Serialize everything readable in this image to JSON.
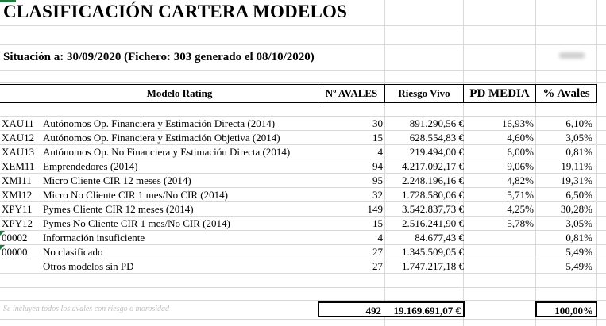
{
  "title": "CLASIFICACIÓN CARTERA MODELOS",
  "situacion": "Situación a: 30/09/2020 (Fichero: 303 generado el 08/10/2020)",
  "headers": {
    "modelo": "Modelo Rating",
    "avales": "Nº AVALES",
    "riesgo": "Riesgo Vivo",
    "pd": "PD MEDIA",
    "pct": "% Avales"
  },
  "rows": [
    {
      "code": "XAU11",
      "desc": "Autónomos Op. Financiera y Estimación Directa (2014)",
      "num": "30",
      "riesgo": "891.290,56 €",
      "pd": "16,93%",
      "pct": "6,10%"
    },
    {
      "code": "XAU12",
      "desc": "Autónomos Op. Financiera y Estimación Objetiva (2014)",
      "num": "15",
      "riesgo": "628.554,83 €",
      "pd": "4,60%",
      "pct": "3,05%"
    },
    {
      "code": "XAU13",
      "desc": "Autónomos Op. No Financiera y Estimación Directa (2014)",
      "num": "4",
      "riesgo": "219.494,00 €",
      "pd": "6,00%",
      "pct": "0,81%"
    },
    {
      "code": "XEM11",
      "desc": "Emprendedores (2014)",
      "num": "94",
      "riesgo": "4.217.092,17 €",
      "pd": "9,06%",
      "pct": "19,11%"
    },
    {
      "code": "XMI11",
      "desc": "Micro Cliente CIR 12 meses (2014)",
      "num": "95",
      "riesgo": "2.248.196,16 €",
      "pd": "4,82%",
      "pct": "19,31%"
    },
    {
      "code": "XMI12",
      "desc": "Micro No Cliente CIR 1 mes/No CIR (2014)",
      "num": "32",
      "riesgo": "1.728.580,06 €",
      "pd": "5,71%",
      "pct": "6,50%"
    },
    {
      "code": "XPY11",
      "desc": "Pymes Cliente CIR 12 meses (2014)",
      "num": "149",
      "riesgo": "3.542.837,73 €",
      "pd": "4,25%",
      "pct": "30,28%"
    },
    {
      "code": "XPY12",
      "desc": "Pymes No Cliente CIR 1 mes/No CIR (2014)",
      "num": "15",
      "riesgo": "2.516.241,90 €",
      "pd": "5,78%",
      "pct": "3,05%"
    },
    {
      "code": "00002",
      "desc": "Información insuficiente",
      "num": "4",
      "riesgo": "84.677,43 €",
      "pd": "",
      "pct": "0,81%"
    },
    {
      "code": "00000",
      "desc": "No clasificado",
      "num": "27",
      "riesgo": "1.345.509,05 €",
      "pd": "",
      "pct": "5,49%"
    },
    {
      "code": "",
      "desc": "Otros modelos sin PD",
      "num": "27",
      "riesgo": "1.747.217,18 €",
      "pd": "",
      "pct": "5,49%"
    }
  ],
  "footnote": "Se incluyen todos los avales con riesgo o morosidad",
  "totals": {
    "num": "492",
    "riesgo": "19.169.691,07 €",
    "pct": "100,00%"
  }
}
